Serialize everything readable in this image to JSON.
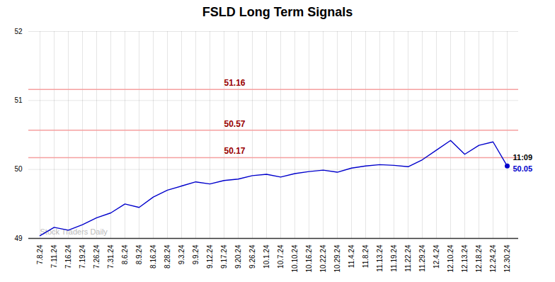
{
  "chart_data": {
    "type": "line",
    "title": "FSLD Long Term Signals",
    "categories": [
      "7.8.24",
      "7.11.24",
      "7.16.24",
      "7.19.24",
      "7.26.24",
      "7.31.24",
      "8.6.24",
      "8.9.24",
      "8.16.24",
      "8.28.24",
      "9.3.24",
      "9.9.24",
      "9.12.24",
      "9.17.24",
      "9.20.24",
      "9.26.24",
      "10.1.24",
      "10.7.24",
      "10.10.24",
      "10.16.24",
      "10.22.24",
      "10.29.24",
      "11.4.24",
      "11.8.24",
      "11.13.24",
      "11.19.24",
      "11.22.24",
      "11.29.24",
      "12.4.24",
      "12.10.24",
      "12.13.24",
      "12.18.24",
      "12.24.24",
      "12.30.24"
    ],
    "values": [
      49.04,
      49.16,
      49.12,
      49.2,
      49.3,
      49.37,
      49.5,
      49.45,
      49.6,
      49.7,
      49.76,
      49.82,
      49.79,
      49.84,
      49.86,
      49.91,
      49.93,
      49.89,
      49.94,
      49.97,
      49.99,
      49.96,
      50.02,
      50.05,
      50.07,
      50.06,
      50.04,
      50.14,
      50.28,
      50.42,
      50.22,
      50.35,
      50.4,
      50.05
    ],
    "color": "#0000cc",
    "ylim": [
      49.0,
      52.0
    ],
    "yticks": [
      49,
      50,
      51,
      52
    ],
    "grid": true,
    "hlines": [
      {
        "value": 51.16,
        "color": "#f5a0a0"
      },
      {
        "value": 50.57,
        "color": "#f5a0a0"
      },
      {
        "value": 50.17,
        "color": "#f5a0a0"
      }
    ],
    "annotations": [
      "11:09",
      "50.05",
      "Stock Traders Daily"
    ]
  }
}
